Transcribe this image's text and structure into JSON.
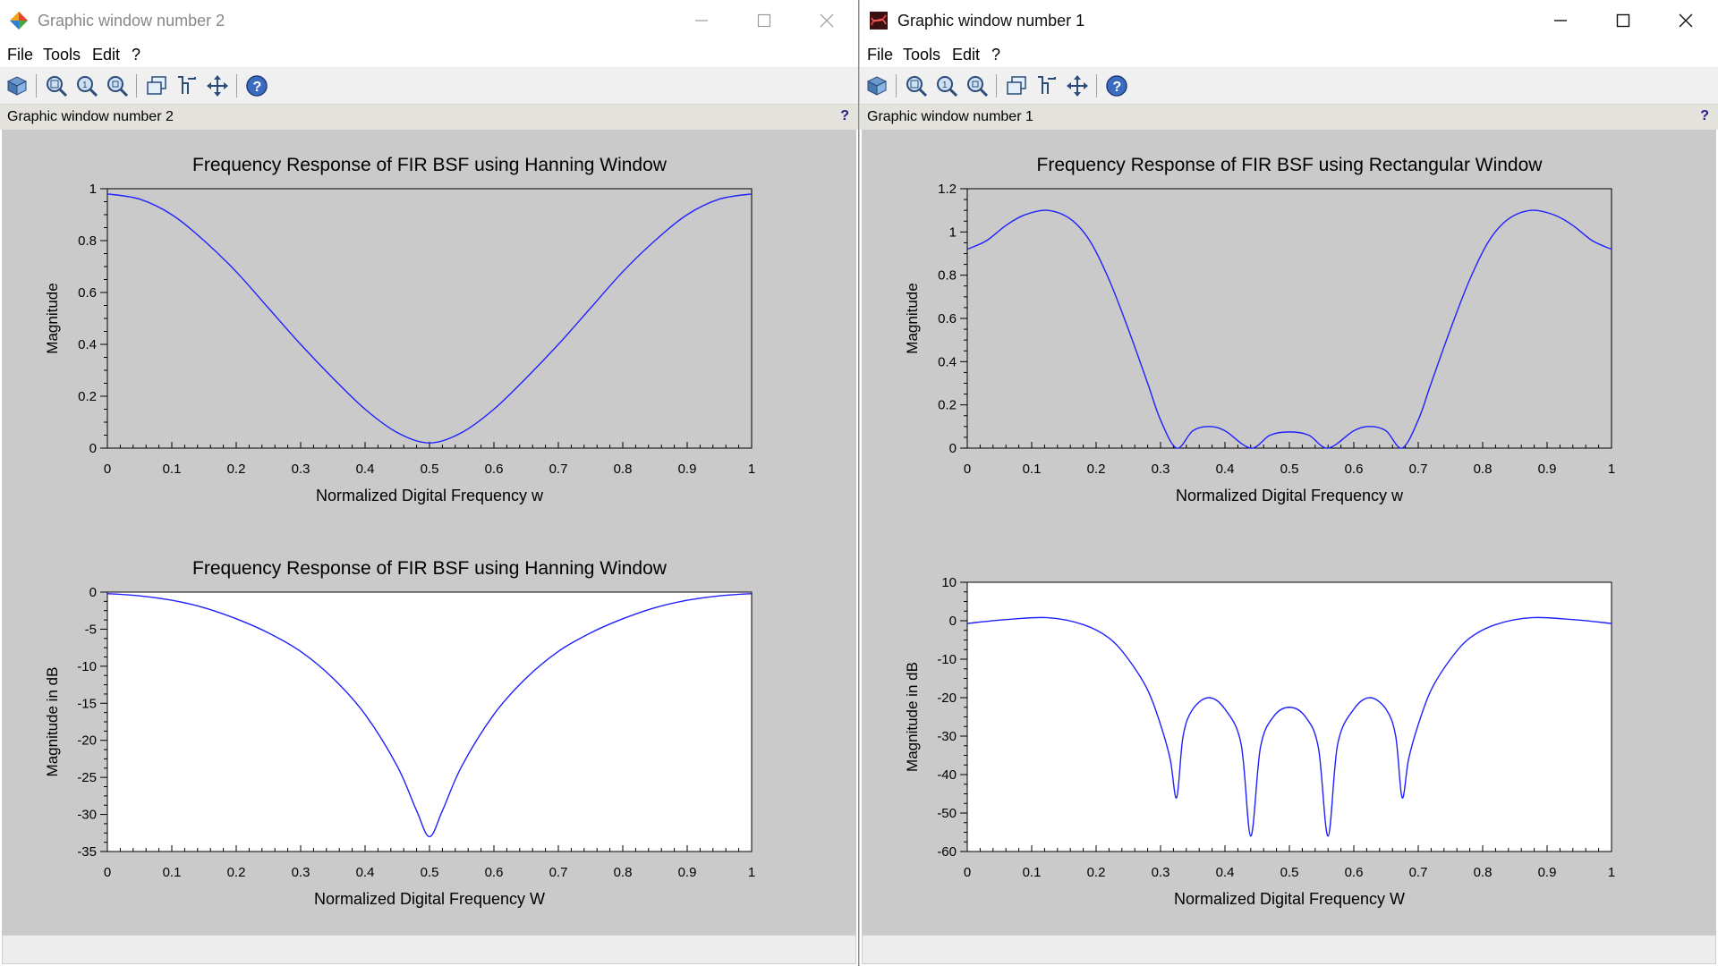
{
  "windows": [
    {
      "id": "left",
      "title": "Graphic window number 2",
      "menu": [
        "File",
        "Tools",
        "Edit",
        "?"
      ],
      "info_label": "Graphic window number 2",
      "info_help": "?",
      "icon": "scilab-graphic-icon"
    },
    {
      "id": "right",
      "title": "Graphic window number 1",
      "menu": [
        "File",
        "Tools",
        "Edit",
        "?"
      ],
      "info_label": "Graphic window number 1",
      "info_help": "?",
      "icon": "scilab-graphic-dark-icon"
    }
  ],
  "toolbar_icons": [
    "rotate-icon",
    "zoom-area-icon",
    "zoom-in-icon",
    "zoom-out-icon",
    "copy-figure-icon",
    "datatip-icon",
    "pan-icon",
    "help-icon"
  ],
  "colors": {
    "curve": "#2020ff",
    "canvas": "#cacaca",
    "info_help": "#2a1a8a"
  },
  "chart_data": [
    {
      "window": "Graphic window number 2",
      "type": "line",
      "title": "Frequency Response of FIR BSF using Hanning Window",
      "xlabel": "Normalized Digital Frequency w",
      "ylabel": "Magnitude",
      "xlim": [
        0,
        1
      ],
      "ylim": [
        0,
        1
      ],
      "xticks": [
        "0",
        "0.1",
        "0.2",
        "0.3",
        "0.4",
        "0.5",
        "0.6",
        "0.7",
        "0.8",
        "0.9",
        "1"
      ],
      "yticks": [
        "0",
        "0.2",
        "0.4",
        "0.6",
        "0.8",
        "1"
      ],
      "plot_background": "#cacaca",
      "series": [
        {
          "x": [
            0,
            0.05,
            0.1,
            0.15,
            0.2,
            0.25,
            0.3,
            0.35,
            0.4,
            0.45,
            0.5,
            0.55,
            0.6,
            0.65,
            0.7,
            0.75,
            0.8,
            0.85,
            0.9,
            0.95,
            1
          ],
          "y": [
            0.98,
            0.96,
            0.9,
            0.8,
            0.68,
            0.54,
            0.4,
            0.27,
            0.15,
            0.06,
            0.02,
            0.06,
            0.15,
            0.27,
            0.4,
            0.54,
            0.68,
            0.8,
            0.9,
            0.96,
            0.98
          ]
        }
      ]
    },
    {
      "window": "Graphic window number 2",
      "type": "line",
      "title": "Frequency Response of FIR BSF using Hanning Window",
      "xlabel": "Normalized Digital Frequency W",
      "ylabel": "Magnitude in dB",
      "xlim": [
        0,
        1
      ],
      "ylim": [
        -35,
        0
      ],
      "xticks": [
        "0",
        "0.1",
        "0.2",
        "0.3",
        "0.4",
        "0.5",
        "0.6",
        "0.7",
        "0.8",
        "0.9",
        "1"
      ],
      "yticks": [
        "0",
        "-5",
        "-10",
        "-15",
        "-20",
        "-25",
        "-30",
        "-35"
      ],
      "plot_background": "#ffffff",
      "series": [
        {
          "x": [
            0,
            0.05,
            0.1,
            0.15,
            0.2,
            0.25,
            0.3,
            0.35,
            0.4,
            0.45,
            0.48,
            0.5,
            0.52,
            0.55,
            0.6,
            0.65,
            0.7,
            0.75,
            0.8,
            0.85,
            0.9,
            0.95,
            1
          ],
          "y": [
            -0.2,
            -0.5,
            -1.1,
            -2.1,
            -3.6,
            -5.5,
            -8,
            -11.6,
            -16.5,
            -23.5,
            -29.5,
            -33,
            -29.5,
            -23.5,
            -16.5,
            -11.6,
            -8,
            -5.5,
            -3.6,
            -2.1,
            -1.1,
            -0.5,
            -0.2
          ]
        }
      ]
    },
    {
      "window": "Graphic window number 1",
      "type": "line",
      "title": "Frequency Response of FIR BSF using Rectangular Window",
      "xlabel": "Normalized Digital Frequency w",
      "ylabel": "Magnitude",
      "xlim": [
        0,
        1
      ],
      "ylim": [
        0,
        1.2
      ],
      "xticks": [
        "0",
        "0.1",
        "0.2",
        "0.3",
        "0.4",
        "0.5",
        "0.6",
        "0.7",
        "0.8",
        "0.9",
        "1"
      ],
      "yticks": [
        "0",
        "0.2",
        "0.4",
        "0.6",
        "0.8",
        "1",
        "1.2"
      ],
      "plot_background": "#cacaca",
      "series": [
        {
          "x": [
            0,
            0.03,
            0.06,
            0.09,
            0.125,
            0.16,
            0.19,
            0.22,
            0.25,
            0.28,
            0.3,
            0.325,
            0.35,
            0.375,
            0.4,
            0.44,
            0.47,
            0.5,
            0.53,
            0.56,
            0.6,
            0.625,
            0.65,
            0.675,
            0.7,
            0.72,
            0.75,
            0.78,
            0.81,
            0.84,
            0.875,
            0.91,
            0.94,
            0.97,
            1
          ],
          "y": [
            0.92,
            0.96,
            1.03,
            1.08,
            1.1,
            1.06,
            0.96,
            0.78,
            0.55,
            0.3,
            0.13,
            0.0,
            0.08,
            0.1,
            0.08,
            0.0,
            0.06,
            0.075,
            0.06,
            0.0,
            0.08,
            0.1,
            0.08,
            0.0,
            0.13,
            0.3,
            0.55,
            0.78,
            0.96,
            1.06,
            1.1,
            1.08,
            1.03,
            0.96,
            0.92
          ]
        }
      ]
    },
    {
      "window": "Graphic window number 1",
      "type": "line",
      "title": "",
      "xlabel": "Normalized Digital Frequency W",
      "ylabel": "Magnitude in dB",
      "xlim": [
        0,
        1
      ],
      "ylim": [
        -60,
        10
      ],
      "xticks": [
        "0",
        "0.1",
        "0.2",
        "0.3",
        "0.4",
        "0.5",
        "0.6",
        "0.7",
        "0.8",
        "0.9",
        "1"
      ],
      "yticks": [
        "10",
        "0",
        "-10",
        "-20",
        "-30",
        "-40",
        "-50",
        "-60"
      ],
      "plot_background": "#ffffff",
      "series": [
        {
          "x": [
            0,
            0.06,
            0.125,
            0.18,
            0.22,
            0.25,
            0.28,
            0.3,
            0.315,
            0.325,
            0.335,
            0.35,
            0.375,
            0.4,
            0.425,
            0.44,
            0.455,
            0.475,
            0.5,
            0.525,
            0.545,
            0.56,
            0.575,
            0.6,
            0.625,
            0.65,
            0.665,
            0.675,
            0.685,
            0.7,
            0.72,
            0.75,
            0.78,
            0.82,
            0.875,
            0.94,
            1
          ],
          "y": [
            -0.7,
            0.3,
            0.8,
            -1,
            -4.5,
            -10,
            -18,
            -27,
            -36,
            -46,
            -30,
            -23,
            -20,
            -23,
            -32,
            -56,
            -33,
            -25,
            -22.5,
            -25,
            -33,
            -56,
            -32,
            -23,
            -20,
            -23,
            -30,
            -46,
            -36,
            -27,
            -18,
            -10,
            -4.5,
            -1,
            0.8,
            0.3,
            -0.7
          ]
        }
      ]
    }
  ]
}
